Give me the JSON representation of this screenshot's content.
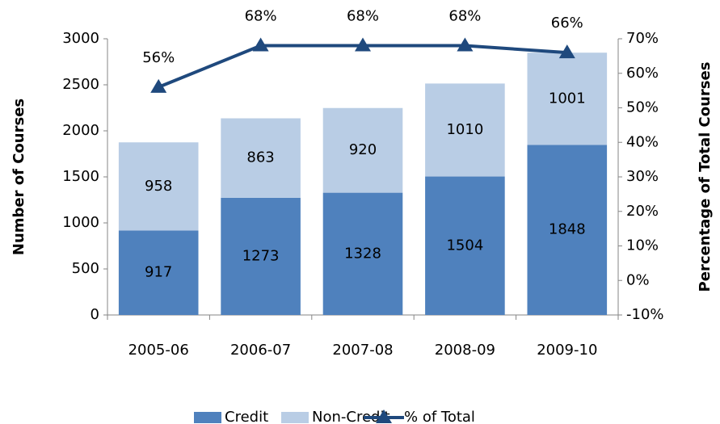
{
  "chart_data": {
    "type": "bar",
    "stacked": true,
    "categories": [
      "2005-06",
      "2006-07",
      "2007-08",
      "2008-09",
      "2009-10"
    ],
    "series": [
      {
        "name": "Credit",
        "color": "#4f81bd",
        "values": [
          917,
          1273,
          1328,
          1504,
          1848
        ]
      },
      {
        "name": "Non-Credit",
        "color": "#b9cde5",
        "values": [
          958,
          863,
          920,
          1010,
          1001
        ]
      },
      {
        "name": "% of Total",
        "type": "line",
        "axis": "y2",
        "color": "#1f497d",
        "values": [
          56,
          68,
          68,
          68,
          66
        ],
        "value_labels": [
          "56%",
          "68%",
          "68%",
          "68%",
          "66%"
        ]
      }
    ],
    "ylabel": "Number of Courses",
    "y2label": "Percentage of Total Courses",
    "ylim": [
      0,
      3000
    ],
    "yticks": [
      0,
      500,
      1000,
      1500,
      2000,
      2500,
      3000
    ],
    "y2lim": [
      -10,
      70
    ],
    "y2ticks": [
      {
        "value": -10,
        "label": "-10%"
      },
      {
        "value": 0,
        "label": "0%"
      },
      {
        "value": 10,
        "label": "10%"
      },
      {
        "value": 20,
        "label": "20%"
      },
      {
        "value": 30,
        "label": "30%"
      },
      {
        "value": 40,
        "label": "40%"
      },
      {
        "value": 50,
        "label": "50%"
      },
      {
        "value": 60,
        "label": "60%"
      },
      {
        "value": 70,
        "label": "70%"
      }
    ],
    "legend": "bottom",
    "grid": false
  }
}
